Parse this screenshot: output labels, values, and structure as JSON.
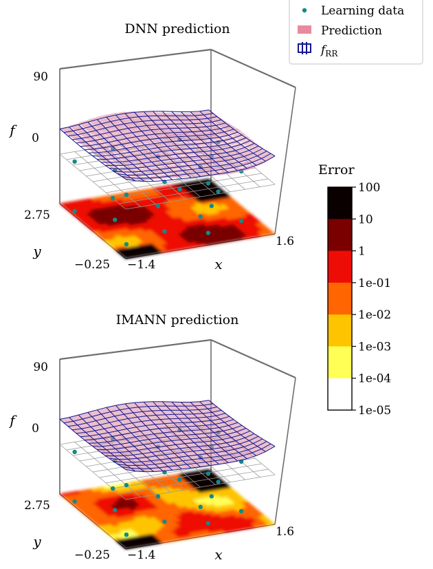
{
  "legend": {
    "items": [
      {
        "label": "Learning data",
        "kind": "points",
        "color": "#138a8a"
      },
      {
        "label": "Prediction",
        "kind": "patch",
        "color": "#e88a9e"
      },
      {
        "label": "f",
        "sub": "RR",
        "kind": "wireframe",
        "color": "#14168a"
      }
    ]
  },
  "colorbar": {
    "title": "Error",
    "ticks": [
      "100",
      "10",
      "1",
      "1e-01",
      "1e-02",
      "1e-03",
      "1e-04",
      "1e-05"
    ],
    "band_colors": [
      "#0a0000",
      "#7a0000",
      "#ee0d06",
      "#ff6500",
      "#ffc400",
      "#ffff55",
      "#ffffff"
    ]
  },
  "chart_data": [
    {
      "type": "surface3d",
      "title": "DNN prediction",
      "xlabel": "x",
      "ylabel": "y",
      "zlabel": "f",
      "xticks": [
        "−1.4",
        "1.6"
      ],
      "yticks": [
        "−0.25",
        "2.75"
      ],
      "zticks": [
        "90",
        "0"
      ],
      "xlim": [
        -1.4,
        1.6
      ],
      "ylim": [
        -0.25,
        2.75
      ],
      "zlim": [
        -50,
        90
      ],
      "learning_points": [
        [
          -1.3,
          2.3
        ],
        [
          -1.1,
          0.4
        ],
        [
          -0.8,
          1.6
        ],
        [
          -0.4,
          2.6
        ],
        [
          -0.2,
          0.7
        ],
        [
          0.2,
          1.9
        ],
        [
          0.5,
          0.3
        ],
        [
          0.7,
          1.1
        ],
        [
          0.9,
          2.5
        ],
        [
          1.1,
          1.5
        ],
        [
          1.3,
          0.6
        ],
        [
          1.5,
          2.1
        ]
      ]
    },
    {
      "type": "surface3d",
      "title": "IMANN prediction",
      "xlabel": "x",
      "ylabel": "y",
      "zlabel": "f",
      "xticks": [
        "−1.4",
        "1.6"
      ],
      "yticks": [
        "−0.25",
        "2.75"
      ],
      "zticks": [
        "90",
        "0"
      ],
      "xlim": [
        -1.4,
        1.6
      ],
      "ylim": [
        -0.25,
        2.75
      ],
      "zlim": [
        -50,
        90
      ],
      "learning_points": [
        [
          -1.3,
          2.3
        ],
        [
          -1.1,
          0.4
        ],
        [
          -0.8,
          1.6
        ],
        [
          -0.4,
          2.6
        ],
        [
          -0.2,
          0.7
        ],
        [
          0.2,
          1.9
        ],
        [
          0.5,
          0.3
        ],
        [
          0.7,
          1.1
        ],
        [
          0.9,
          2.5
        ],
        [
          1.1,
          1.5
        ],
        [
          1.3,
          0.6
        ],
        [
          1.5,
          2.1
        ]
      ]
    }
  ]
}
